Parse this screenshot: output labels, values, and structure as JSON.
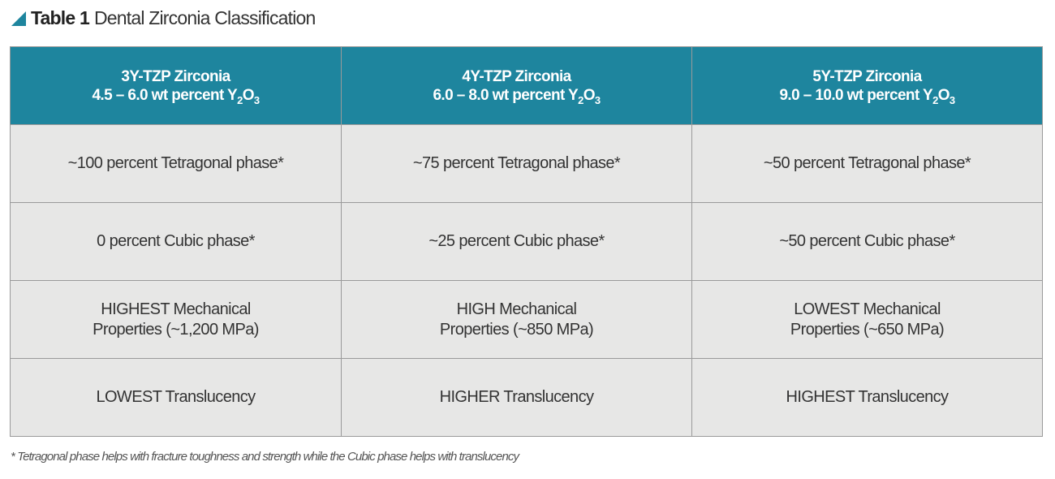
{
  "title": {
    "label": "Table 1",
    "text": "Dental Zirconia Classification"
  },
  "table": {
    "header": [
      {
        "name": "3Y-TZP Zirconia",
        "formula": [
          "4.5 – 6.0 wt percent Y",
          "2",
          "O",
          "3"
        ]
      },
      {
        "name": "4Y-TZP Zirconia",
        "formula": [
          "6.0 – 8.0 wt percent Y",
          "2",
          "O",
          "3"
        ]
      },
      {
        "name": "5Y-TZP Zirconia",
        "formula": [
          "9.0 – 10.0 wt percent Y",
          "2",
          "O",
          "3"
        ]
      }
    ],
    "rows": [
      [
        [
          "~100 percent Tetragonal phase*"
        ],
        [
          "~75 percent Tetragonal phase*"
        ],
        [
          "~50 percent Tetragonal phase*"
        ]
      ],
      [
        [
          "0 percent Cubic phase*"
        ],
        [
          "~25 percent Cubic phase*"
        ],
        [
          "~50 percent Cubic phase*"
        ]
      ],
      [
        [
          "HIGHEST Mechanical",
          "Properties (~1,200 MPa)"
        ],
        [
          "HIGH Mechanical",
          "Properties (~850 MPa)"
        ],
        [
          "LOWEST Mechanical",
          "Properties (~650 MPa)"
        ]
      ],
      [
        [
          "LOWEST Translucency"
        ],
        [
          "HIGHER Translucency"
        ],
        [
          "HIGHEST Translucency"
        ]
      ]
    ]
  },
  "footnote": "* Tetragonal phase helps with fracture toughness and strength while the Cubic phase helps with translucency"
}
